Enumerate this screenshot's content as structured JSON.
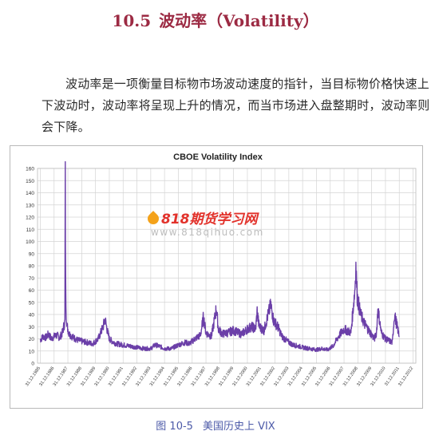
{
  "heading": {
    "number": "10.5",
    "title": "波动率（Volatility）"
  },
  "paragraph": "波动率是一项衡量目标物市场波动速度的指针，当目标物价格快速上下波动时，波动率将呈现上升的情况，而当市场进入盘整期时，波动率则会下降。",
  "caption": {
    "figure": "图 10-5",
    "text": "美国历史上 VIX"
  },
  "watermark": {
    "logo": "818期货学习网",
    "url": "www.818qihuo.com"
  },
  "chart_data": {
    "type": "line",
    "title": "CBOE Volatility Index",
    "xlabel": "",
    "ylabel": "",
    "ylim": [
      0,
      160
    ],
    "yticks": [
      0,
      10,
      20,
      30,
      40,
      50,
      60,
      70,
      80,
      90,
      100,
      110,
      120,
      130,
      140,
      150,
      160
    ],
    "xticks": [
      "31.12.1985",
      "31.12.1986",
      "31.12.1987",
      "31.12.1988",
      "31.12.1989",
      "31.12.1990",
      "31.12.1991",
      "31.12.1992",
      "31.12.1993",
      "31.12.1994",
      "31.12.1995",
      "31.12.1996",
      "31.12.1997",
      "31.12.1998",
      "31.12.1999",
      "31.12.2000",
      "31.12.2001",
      "31.12.2002",
      "31.12.2003",
      "31.12.2004",
      "31.12.2005",
      "31.12.2006",
      "31.12.2007",
      "31.12.2008",
      "31.12.2009",
      "31.12.2010",
      "31.12.2011",
      "31.12.2012"
    ],
    "grid": true,
    "line_color": "#6b3fa8",
    "series": [
      {
        "x": [
          1986.0,
          1986.2,
          1986.4,
          1986.6,
          1986.8,
          1987.0,
          1987.2,
          1987.4,
          1987.6,
          1987.78,
          1987.81,
          1987.84,
          1987.88,
          1987.95,
          1988.1,
          1988.4,
          1988.7,
          1989.0,
          1989.4,
          1989.8,
          1990.2,
          1990.55,
          1990.7,
          1990.85,
          1991.0,
          1991.2,
          1991.5,
          1992.0,
          1992.5,
          1993.0,
          1993.5,
          1994.0,
          1994.3,
          1994.6,
          1995.0,
          1995.5,
          1996.0,
          1996.5,
          1996.8,
          1997.2,
          1997.6,
          1997.82,
          1998.0,
          1998.4,
          1998.65,
          1998.75,
          1998.9,
          1999.2,
          1999.6,
          2000.0,
          2000.3,
          2000.6,
          2001.0,
          2001.3,
          2001.6,
          2001.71,
          2001.85,
          2002.2,
          2002.55,
          2002.7,
          2002.9,
          2003.2,
          2003.5,
          2003.9,
          2004.3,
          2004.7,
          2005.0,
          2005.5,
          2006.0,
          2006.4,
          2006.8,
          2007.2,
          2007.6,
          2008.0,
          2008.5,
          2008.78,
          2008.86,
          2008.95,
          2009.2,
          2009.5,
          2009.9,
          2010.2,
          2010.35,
          2010.45,
          2010.7,
          2011.0,
          2011.5,
          2011.65,
          2011.85,
          2012.0
        ],
        "values": [
          19,
          22,
          21,
          24,
          20,
          22,
          23,
          21,
          25,
          34,
          150,
          62,
          40,
          30,
          24,
          21,
          19,
          18,
          17,
          16,
          20,
          30,
          36,
          27,
          20,
          18,
          16,
          15,
          14,
          13,
          12,
          12,
          15,
          14,
          12,
          12,
          15,
          17,
          16,
          20,
          23,
          38,
          25,
          22,
          38,
          45,
          28,
          24,
          25,
          27,
          25,
          24,
          28,
          30,
          28,
          43,
          30,
          27,
          42,
          48,
          35,
          30,
          22,
          18,
          15,
          14,
          13,
          12,
          11,
          12,
          11,
          14,
          22,
          28,
          25,
          60,
          80,
          55,
          40,
          32,
          25,
          20,
          25,
          45,
          25,
          20,
          17,
          40,
          30,
          22
        ]
      }
    ]
  }
}
